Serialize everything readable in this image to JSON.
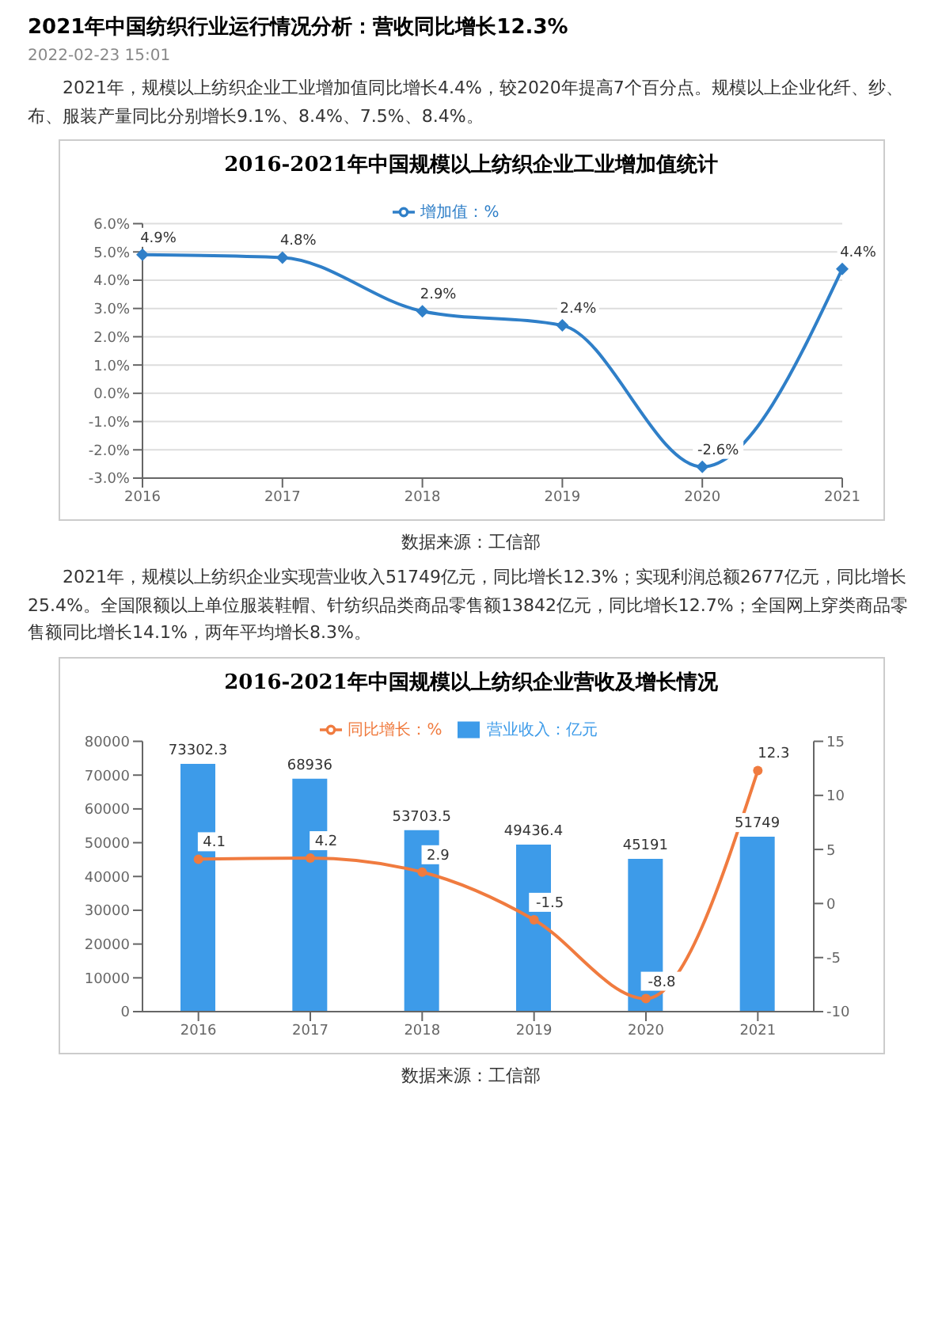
{
  "chart_data": [
    {
      "type": "line",
      "title": "2016-2021年中国规模以上纺织企业工业增加值统计",
      "annotations": [
        "2021年中国纺织行业运行情况分析：营收同比增长12.3%",
        "2022-02-23 15:01",
        "2021年，规模以上纺织企业工业增加值同比增长4.4%，较2020年提高7个百分点。规模以上企业化纤、纱、布、服装产量同比分别增长9.1%、8.4%、7.5%、8.4%。",
        "数据来源：工信部"
      ],
      "categories": [
        "2016",
        "2017",
        "2018",
        "2019",
        "2020",
        "2021"
      ],
      "series": [
        {
          "name": "增加值：%",
          "color": "#2f7fc8",
          "values": [
            4.9,
            4.8,
            2.9,
            2.4,
            -2.6,
            4.4
          ],
          "value_labels": [
            "4.9%",
            "4.8%",
            "2.9%",
            "2.4%",
            "-2.6%",
            "4.4%"
          ]
        }
      ],
      "ylim": [
        -3,
        6
      ],
      "yticks": [
        {
          "value": -3,
          "label": "-3.0%"
        },
        {
          "value": -2,
          "label": "-2.0%"
        },
        {
          "value": -1,
          "label": "-1.0%"
        },
        {
          "value": 0,
          "label": "0.0%"
        },
        {
          "value": 1,
          "label": "1.0%"
        },
        {
          "value": 2,
          "label": "2.0%"
        },
        {
          "value": 3,
          "label": "3.0%"
        },
        {
          "value": 4,
          "label": "4.0%"
        },
        {
          "value": 5,
          "label": "5.0%"
        },
        {
          "value": 6,
          "label": "6.0%"
        }
      ],
      "grid": "y",
      "legend": "top",
      "marker": "diamond"
    },
    {
      "type": "bar",
      "title": "2016-2021年中国规模以上纺织企业营收及增长情况",
      "annotations": [
        "2021年，规模以上纺织企业实现营业收入51749亿元，同比增长12.3%；实现利润总额2677亿元，同比增长25.4%。全国限额以上单位服装鞋帽、针纺织品类商品零售额13842亿元，同比增长12.7%；全国网上穿类商品零售额同比增长14.1%，两年平均增长8.3%。",
        "数据来源：工信部"
      ],
      "categories": [
        "2016",
        "2017",
        "2018",
        "2019",
        "2020",
        "2021"
      ],
      "series": [
        {
          "name": "营业收入：亿元",
          "color": "#3d9be9",
          "values": [
            73302.3,
            68936,
            53703.5,
            49436.4,
            45191,
            51749
          ]
        },
        {
          "name": "同比增长：%",
          "type": "line",
          "axis": "y2",
          "color": "#f07b3f",
          "values": [
            4.1,
            4.2,
            2.9,
            -1.5,
            -8.8,
            12.3
          ]
        }
      ],
      "ylim": [
        0,
        80000
      ],
      "yticks": [
        0,
        10000,
        20000,
        30000,
        40000,
        50000,
        60000,
        70000,
        80000
      ],
      "y2lim": [
        -10,
        15
      ],
      "y2ticks": [
        -10,
        -5,
        0,
        5,
        10,
        15
      ],
      "data_labels": true,
      "legend": "top",
      "marker": "circle"
    }
  ]
}
